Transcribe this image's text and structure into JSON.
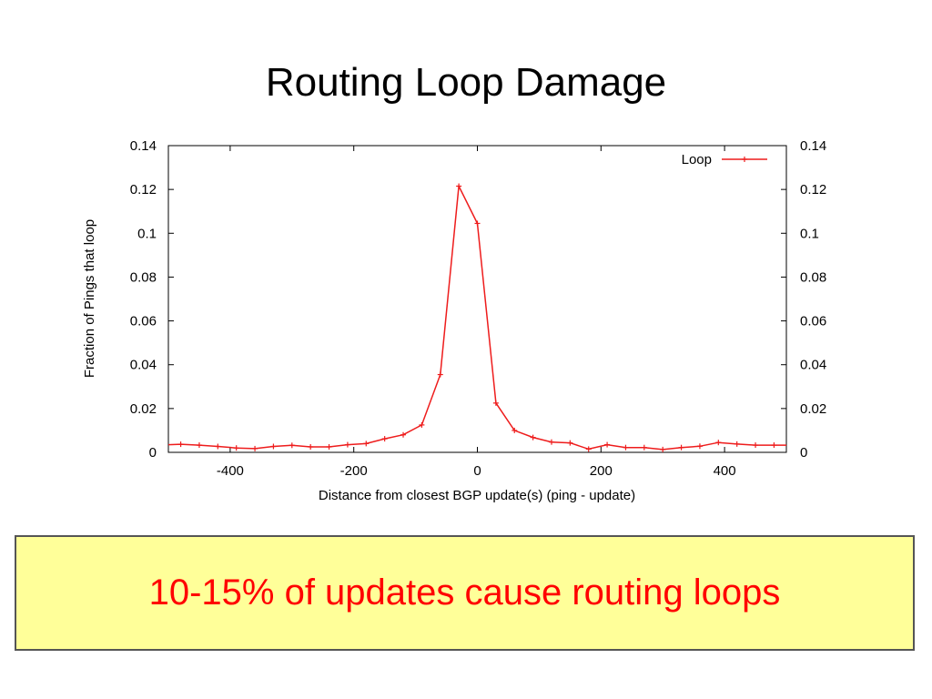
{
  "slide": {
    "title": "Routing Loop Damage",
    "callout": "10-15% of updates cause routing loops"
  },
  "colors": {
    "series": "#ee1c1c",
    "callout_text": "#ff0000",
    "callout_background": "#ffff99",
    "callout_border": "#555555"
  },
  "chart_data": {
    "type": "line",
    "title": "",
    "xlabel": "Distance from closest BGP update(s) (ping - update)",
    "ylabel": "Fraction of Pings that loop",
    "xlim": [
      -500,
      500
    ],
    "ylim": [
      0,
      0.14
    ],
    "x_ticks": [
      -400,
      -200,
      0,
      200,
      400
    ],
    "x_tick_labels": [
      "-400",
      "-200",
      "0",
      "200",
      "400"
    ],
    "y_ticks": [
      0,
      0.02,
      0.04,
      0.06,
      0.08,
      0.1,
      0.12,
      0.14
    ],
    "y_tick_labels": [
      "0",
      "0.02",
      "0.04",
      "0.06",
      "0.08",
      "0.1",
      "0.12",
      "0.14"
    ],
    "right_y_tick_labels": [
      "0",
      "0.02",
      "0.04",
      "0.06",
      "0.08",
      "0.1",
      "0.12",
      "0.14"
    ],
    "grid": false,
    "legend": "top-right",
    "series": [
      {
        "name": "Loop",
        "x": [
          -500,
          -480,
          -450,
          -420,
          -390,
          -360,
          -330,
          -300,
          -270,
          -240,
          -210,
          -180,
          -150,
          -120,
          -90,
          -60,
          -30,
          0,
          30,
          60,
          90,
          120,
          150,
          180,
          210,
          240,
          270,
          300,
          330,
          360,
          390,
          420,
          450,
          480,
          500
        ],
        "values": [
          0.0035,
          0.0037,
          0.0033,
          0.0027,
          0.002,
          0.0017,
          0.0027,
          0.0032,
          0.0025,
          0.0025,
          0.0035,
          0.004,
          0.0062,
          0.008,
          0.0125,
          0.0355,
          0.1215,
          0.1045,
          0.0225,
          0.01,
          0.0068,
          0.0047,
          0.0043,
          0.0015,
          0.0035,
          0.0022,
          0.0022,
          0.0013,
          0.0022,
          0.0028,
          0.0045,
          0.0038,
          0.0033,
          0.0033,
          0.0033
        ]
      }
    ]
  }
}
